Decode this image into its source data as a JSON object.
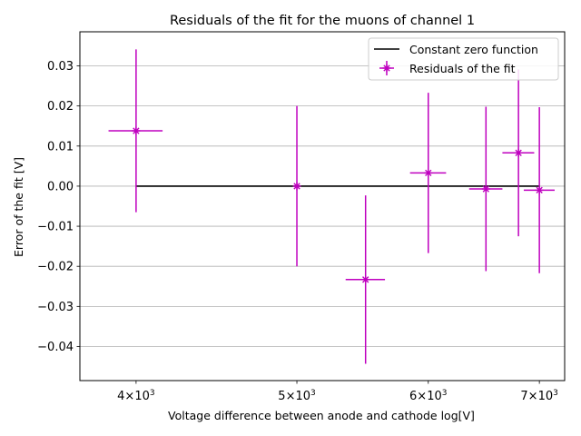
{
  "chart_data": {
    "type": "scatter",
    "title": "Residuals of the fit for the muons of channel 1",
    "xlabel": "Voltage difference between anode and cathode log[V]",
    "ylabel": "Error of the fit [V]",
    "x_scale": "log",
    "xlim": [
      3700,
      7250
    ],
    "ylim": [
      -0.0485,
      0.0385
    ],
    "grid": "y-major",
    "legend_position": "top-right",
    "x_ticks": [
      {
        "value": 4000,
        "label": "4×10³"
      },
      {
        "value": 5000,
        "label": "5×10³"
      },
      {
        "value": 6000,
        "label": "6×10³"
      },
      {
        "value": 7000,
        "label": "7×10³"
      }
    ],
    "y_ticks": [
      {
        "value": 0.03,
        "label": "0.03"
      },
      {
        "value": 0.02,
        "label": "0.02"
      },
      {
        "value": 0.01,
        "label": "0.01"
      },
      {
        "value": 0.0,
        "label": "0.00"
      },
      {
        "value": -0.01,
        "label": "−0.01"
      },
      {
        "value": -0.02,
        "label": "−0.02"
      },
      {
        "value": -0.03,
        "label": "−0.03"
      },
      {
        "value": -0.04,
        "label": "−0.04"
      }
    ],
    "zero_line": {
      "name": "Constant zero function",
      "color": "#000000",
      "x_range": [
        4000,
        7000
      ],
      "y": 0.0
    },
    "series": [
      {
        "name": "Residuals of  the fit",
        "color": "#bf00bf",
        "marker": "x-star",
        "points": [
          {
            "x": 4000,
            "y": 0.0138,
            "xerr": 150,
            "yerr": 0.0203
          },
          {
            "x": 5000,
            "y": 0.0,
            "xerr": 0,
            "yerr": 0.02
          },
          {
            "x": 5500,
            "y": -0.0233,
            "xerr": 150,
            "yerr": 0.021
          },
          {
            "x": 6000,
            "y": 0.0033,
            "xerr": 150,
            "yerr": 0.02
          },
          {
            "x": 6500,
            "y": -0.0007,
            "xerr": 150,
            "yerr": 0.0205
          },
          {
            "x": 6800,
            "y": 0.0083,
            "xerr": 150,
            "yerr": 0.0208
          },
          {
            "x": 7000,
            "y": -0.001,
            "xerr": 150,
            "yerr": 0.0207
          }
        ]
      }
    ]
  }
}
